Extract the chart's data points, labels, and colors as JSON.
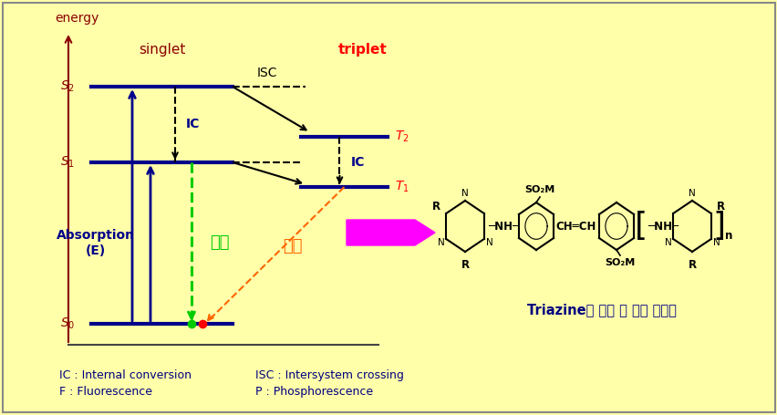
{
  "bg_color": "#FFFFAA",
  "fig_width": 8.53,
  "fig_height": 4.55,
  "dpi": 100,
  "energy_label": "energy",
  "energy_label_color": "#8B0000",
  "singlet_label": "singlet",
  "singlet_label_color": "#8B0000",
  "triplet_label": "triplet",
  "triplet_label_color": "#FF0000",
  "absorption_label": "Absorption\n(E)",
  "absorption_color": "#00008B",
  "fluorescence_label": "형광",
  "fluorescence_color": "#00CC00",
  "phosphorescence_label": "인광",
  "phosphorescence_color": "#FF6600",
  "ic_color": "#00008B",
  "isc_color": "#000000",
  "arrow_black": "#000000",
  "level_color": "#00008B",
  "s_label_color": "#8B0000",
  "t_label_color": "#FF0000",
  "footnote_color": "#000080",
  "chem_title_color": "#000080",
  "pink_arrow_color": "#FF00FF"
}
